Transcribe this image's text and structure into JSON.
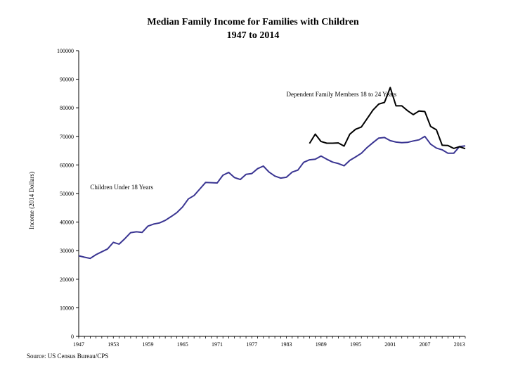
{
  "chart_data": {
    "type": "line",
    "title": "Median Family Income for Families with Children",
    "subtitle": "1947 to 2014",
    "ylabel": "Income (2014 Dollars)",
    "xlabel": "",
    "source": "Source: US Census Bureau/CPS",
    "xlim": [
      1947,
      2014
    ],
    "ylim": [
      0,
      100000
    ],
    "yticks": [
      0,
      10000,
      20000,
      30000,
      40000,
      50000,
      60000,
      70000,
      80000,
      90000,
      100000
    ],
    "xticks": [
      1947,
      1953,
      1959,
      1965,
      1971,
      1977,
      1983,
      1989,
      1995,
      2001,
      2007,
      2013
    ],
    "grid": false,
    "annotations": [
      {
        "text": "Dependent Family Members 18 to 24 Years",
        "x": 1983,
        "y": 84000
      },
      {
        "text": "Children Under 18 Years",
        "x": 1949,
        "y": 51500
      }
    ],
    "series": [
      {
        "color": "#3a3592",
        "x": [
          1947,
          1948,
          1949,
          1950,
          1951,
          1952,
          1953,
          1954,
          1955,
          1956,
          1957,
          1958,
          1959,
          1960,
          1961,
          1962,
          1963,
          1964,
          1965,
          1966,
          1967,
          1968,
          1969,
          1970,
          1971,
          1972,
          1973,
          1974,
          1975,
          1976,
          1977,
          1978,
          1979,
          1980,
          1981,
          1982,
          1983,
          1984,
          1985,
          1986,
          1987,
          1988,
          1989,
          1990,
          1991,
          1992,
          1993,
          1994,
          1995,
          1996,
          1997,
          1998,
          1999,
          2000,
          2001,
          2002,
          2003,
          2004,
          2005,
          2006,
          2007,
          2008,
          2009,
          2010,
          2011,
          2012,
          2013,
          2014
        ],
        "values": [
          28200,
          27700,
          27300,
          28600,
          29600,
          30600,
          32900,
          32300,
          34200,
          36300,
          36600,
          36400,
          38600,
          39300,
          39700,
          40600,
          41900,
          43300,
          45300,
          48100,
          49300,
          51600,
          53900,
          53800,
          53700,
          56400,
          57400,
          55600,
          54900,
          56700,
          57000,
          58700,
          59600,
          57500,
          56100,
          55400,
          55700,
          57500,
          58200,
          60900,
          61800,
          62000,
          63100,
          62000,
          61000,
          60500,
          59700,
          61600,
          62800,
          64100,
          66100,
          67800,
          69400,
          69600,
          68500,
          68000,
          67800,
          67900,
          68400,
          68800,
          70000,
          67300,
          65900,
          65300,
          64100,
          64100,
          66400,
          66700
        ]
      },
      {
        "color": "#000000",
        "x": [
          1987,
          1988,
          1989,
          1990,
          1991,
          1992,
          1993,
          1994,
          1995,
          1996,
          1997,
          1998,
          1999,
          2000,
          2001,
          2002,
          2003,
          2004,
          2005,
          2006,
          2007,
          2008,
          2009,
          2010,
          2011,
          2012,
          2013,
          2014
        ],
        "values": [
          67500,
          70800,
          68200,
          67600,
          67600,
          67700,
          66600,
          70800,
          72500,
          73300,
          76200,
          79200,
          81300,
          81900,
          87100,
          80700,
          80700,
          79000,
          77600,
          78900,
          78700,
          73500,
          72300,
          66900,
          66800,
          65800,
          66400,
          65700
        ]
      }
    ]
  }
}
